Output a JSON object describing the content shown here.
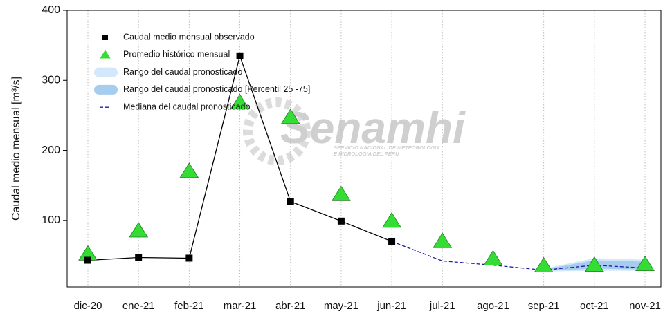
{
  "chart_data": {
    "type": "line",
    "ylabel": "Caudal medio mensual  [m³/s]",
    "watermark": {
      "title": "Senamhi",
      "subtitle_1": "SERVICIO NACIONAL DE METEOROLOGIA",
      "subtitle_2": "E HIDROLOGIA DEL PERU"
    },
    "categories": [
      "dic-20",
      "ene-21",
      "feb-21",
      "mar-21",
      "abr-21",
      "may-21",
      "jun-21",
      "jul-21",
      "ago-21",
      "sep-21",
      "oct-21",
      "nov-21"
    ],
    "ylim": [
      5,
      400
    ],
    "yticks": [
      100,
      200,
      300,
      400
    ],
    "grid": true,
    "legend": "upper-left",
    "series": [
      {
        "name": "Caudal medio mensual observado",
        "color": "#000000",
        "marker": "square",
        "values": [
          43,
          47,
          46,
          335,
          127,
          99,
          70,
          null,
          null,
          null,
          null,
          null
        ]
      },
      {
        "name": "Promedio histórico mensual",
        "color": "#33dd33",
        "marker": "triangle",
        "values": [
          52,
          85,
          170,
          268,
          247,
          137,
          99,
          70,
          45,
          35,
          36,
          37
        ]
      },
      {
        "name": "Mediana del caudal pronosticado",
        "color": "#1c1caa",
        "marker": "dashed",
        "values": [
          null,
          null,
          null,
          null,
          null,
          null,
          70,
          42,
          36,
          29,
          36,
          32
        ]
      }
    ],
    "bands": [
      {
        "name": "Rango del caudal pronosticado",
        "color": "#d3e8fb",
        "lower": [
          null,
          null,
          null,
          null,
          null,
          null,
          null,
          null,
          null,
          27,
          28,
          28
        ],
        "upper": [
          null,
          null,
          null,
          null,
          null,
          null,
          null,
          null,
          null,
          31,
          46,
          44
        ]
      },
      {
        "name": "Rango del caudal pronosticado [Percentil 25 -75]",
        "color": "#a6cdf0",
        "lower": [
          null,
          null,
          null,
          null,
          null,
          null,
          null,
          null,
          null,
          28,
          31,
          30
        ],
        "upper": [
          null,
          null,
          null,
          null,
          null,
          null,
          null,
          null,
          null,
          30,
          43,
          41
        ]
      }
    ]
  }
}
